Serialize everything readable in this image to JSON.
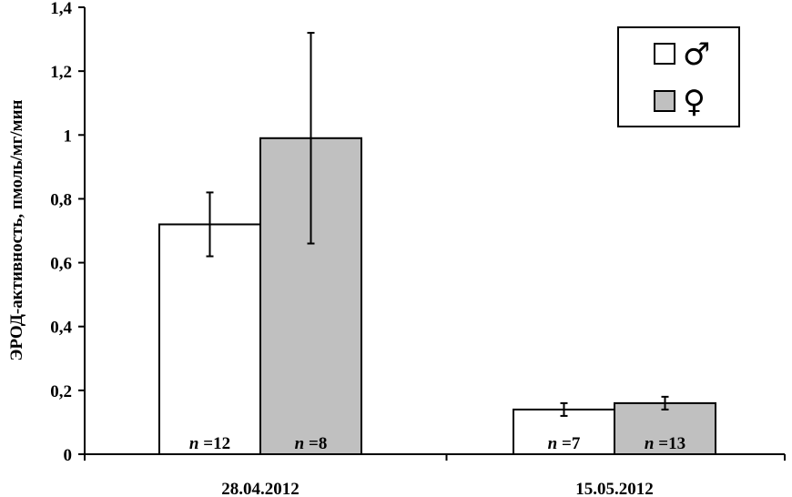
{
  "chart_data": {
    "type": "bar",
    "title": "",
    "xlabel": "",
    "ylabel": "ЭРОД-активность, пмоль/мг/мин",
    "ylim": [
      0,
      1.4
    ],
    "yticks": [
      "0",
      "0,2",
      "0,4",
      "0,6",
      "0,8",
      "1",
      "1,2",
      "1,4"
    ],
    "ytick_values": [
      0,
      0.2,
      0.4,
      0.6,
      0.8,
      1.0,
      1.2,
      1.4
    ],
    "categories": [
      "28.04.2012",
      "15.05.2012"
    ],
    "grid": false,
    "legend_position": "top-right",
    "series": [
      {
        "name": "♂",
        "color": "#ffffff",
        "values": [
          0.72,
          0.14
        ],
        "error_low": [
          0.62,
          0.12
        ],
        "error_high": [
          0.82,
          0.16
        ],
        "n_prefix": "n",
        "n_values": [
          "=12",
          "=7"
        ]
      },
      {
        "name": "♀",
        "color": "#c0c0c0",
        "values": [
          0.99,
          0.16
        ],
        "error_low": [
          0.66,
          0.14
        ],
        "error_high": [
          1.32,
          0.18
        ],
        "n_prefix": "n",
        "n_values": [
          "=8",
          "=13"
        ]
      }
    ]
  }
}
